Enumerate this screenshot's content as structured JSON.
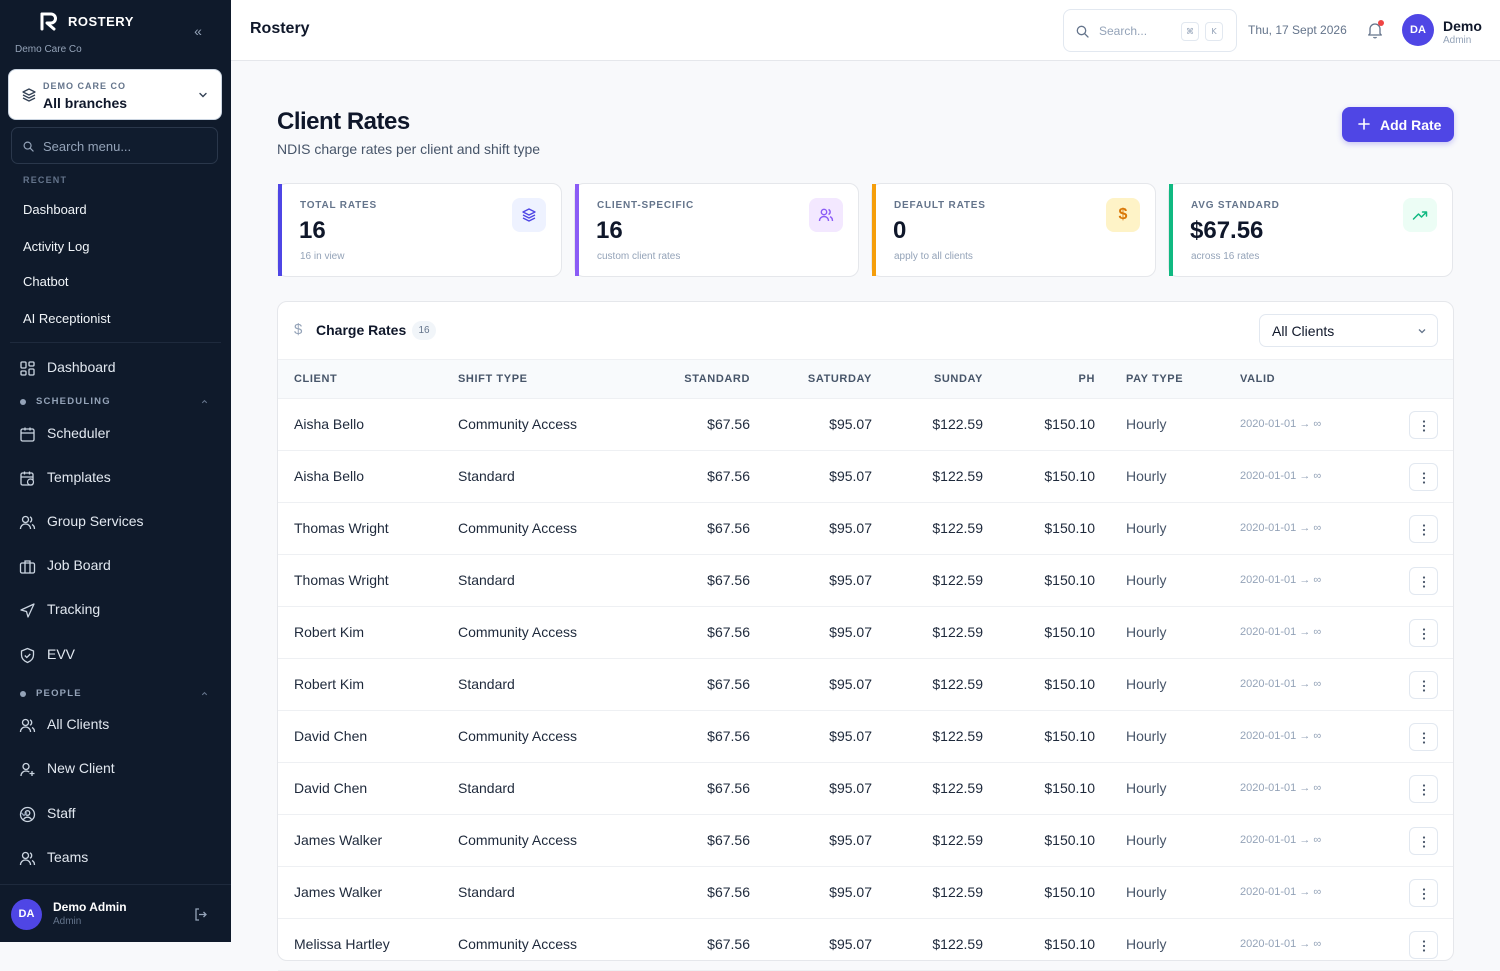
{
  "sidebar": {
    "brand": "ROSTERY",
    "org": "Demo Care Co",
    "branch": {
      "org": "DEMO CARE CO",
      "name": "All branches"
    },
    "search_placeholder": "Search menu...",
    "recent_label": "RECENT",
    "recent": [
      "Dashboard",
      "Activity Log",
      "Chatbot",
      "AI Receptionist"
    ],
    "dashboard": "Dashboard",
    "scheduling": {
      "label": "SCHEDULING",
      "items": [
        "Scheduler",
        "Templates",
        "Group Services",
        "Job Board",
        "Tracking",
        "EVV"
      ]
    },
    "people": {
      "label": "PEOPLE",
      "items": [
        "All Clients",
        "New Client",
        "Staff",
        "Teams"
      ]
    },
    "user": {
      "initials": "DA",
      "name": "Demo Admin",
      "role": "Admin"
    }
  },
  "topbar": {
    "title": "Rostery",
    "search_placeholder": "Search...",
    "kbd": [
      "⌘",
      "K"
    ],
    "date": "Thu, 17 Sept 2026",
    "user": {
      "initials": "DA",
      "name": "Demo",
      "role": "Admin"
    }
  },
  "page": {
    "title": "Client Rates",
    "subtitle": "NDIS charge rates per client and shift type",
    "add_button": "Add Rate"
  },
  "stats": [
    {
      "label": "TOTAL RATES",
      "value": "16",
      "sub": "16 in view",
      "icon": "layers-icon",
      "color": "#4f46e5"
    },
    {
      "label": "CLIENT-SPECIFIC",
      "value": "16",
      "sub": "custom client rates",
      "icon": "users-icon",
      "color": "#8b5cf6"
    },
    {
      "label": "DEFAULT RATES",
      "value": "0",
      "sub": "apply to all clients",
      "icon": "dollar-icon",
      "color": "#f59e0b"
    },
    {
      "label": "AVG STANDARD",
      "value": "$67.56",
      "sub": "across 16 rates",
      "icon": "trending-up-icon",
      "color": "#10b981"
    }
  ],
  "table": {
    "title": "Charge Rates",
    "count": "16",
    "filter": "All Clients",
    "columns": [
      "CLIENT",
      "SHIFT TYPE",
      "STANDARD",
      "SATURDAY",
      "SUNDAY",
      "PH",
      "PAY TYPE",
      "VALID"
    ],
    "rows": [
      [
        "Aisha Bello",
        "Community Access",
        "$67.56",
        "$95.07",
        "$122.59",
        "$150.10",
        "Hourly",
        "2020-01-01 → ∞"
      ],
      [
        "Aisha Bello",
        "Standard",
        "$67.56",
        "$95.07",
        "$122.59",
        "$150.10",
        "Hourly",
        "2020-01-01 → ∞"
      ],
      [
        "Thomas Wright",
        "Community Access",
        "$67.56",
        "$95.07",
        "$122.59",
        "$150.10",
        "Hourly",
        "2020-01-01 → ∞"
      ],
      [
        "Thomas Wright",
        "Standard",
        "$67.56",
        "$95.07",
        "$122.59",
        "$150.10",
        "Hourly",
        "2020-01-01 → ∞"
      ],
      [
        "Robert Kim",
        "Community Access",
        "$67.56",
        "$95.07",
        "$122.59",
        "$150.10",
        "Hourly",
        "2020-01-01 → ∞"
      ],
      [
        "Robert Kim",
        "Standard",
        "$67.56",
        "$95.07",
        "$122.59",
        "$150.10",
        "Hourly",
        "2020-01-01 → ∞"
      ],
      [
        "David Chen",
        "Community Access",
        "$67.56",
        "$95.07",
        "$122.59",
        "$150.10",
        "Hourly",
        "2020-01-01 → ∞"
      ],
      [
        "David Chen",
        "Standard",
        "$67.56",
        "$95.07",
        "$122.59",
        "$150.10",
        "Hourly",
        "2020-01-01 → ∞"
      ],
      [
        "James Walker",
        "Community Access",
        "$67.56",
        "$95.07",
        "$122.59",
        "$150.10",
        "Hourly",
        "2020-01-01 → ∞"
      ],
      [
        "James Walker",
        "Standard",
        "$67.56",
        "$95.07",
        "$122.59",
        "$150.10",
        "Hourly",
        "2020-01-01 → ∞"
      ],
      [
        "Melissa Hartley",
        "Community Access",
        "$67.56",
        "$95.07",
        "$122.59",
        "$150.10",
        "Hourly",
        "2020-01-01 → ∞"
      ]
    ]
  }
}
